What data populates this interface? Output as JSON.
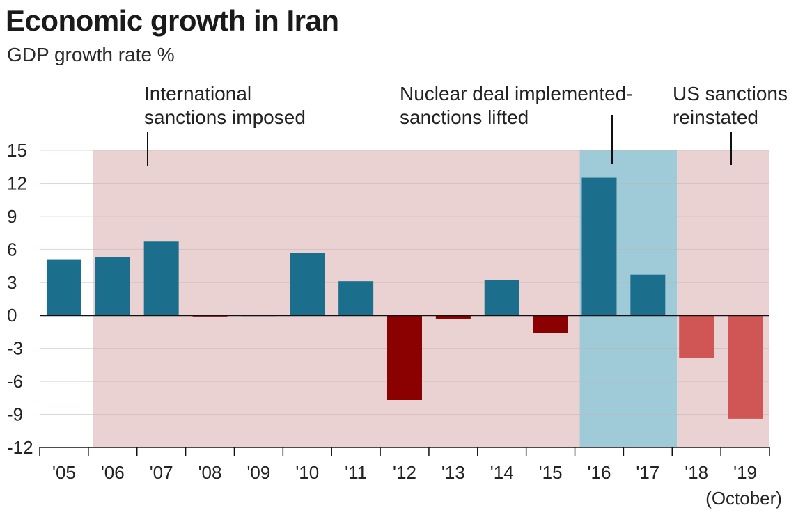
{
  "title": "Economic growth in Iran",
  "subtitle": "GDP growth rate %",
  "annotations": [
    {
      "line1": "International",
      "line2": "sanctions imposed"
    },
    {
      "line1": "Nuclear deal implemented-",
      "line2": "sanctions lifted"
    },
    {
      "line1": "US sanctions",
      "line2": "reinstated"
    }
  ],
  "x_footnote": "(October)",
  "colors": {
    "positive": "#1b6f8c",
    "negative": "#8b0000",
    "forecast_negative": "#d05555",
    "sanctions_band": "#ead2d2",
    "lifted_band": "#9fcbd8",
    "zero_line": "#111111",
    "grid": "#c9b3b3"
  },
  "chart_data": {
    "type": "bar",
    "title": "Economic growth in Iran",
    "subtitle": "GDP growth rate %",
    "categories": [
      "'05",
      "'06",
      "'07",
      "'08",
      "'09",
      "'10",
      "'11",
      "'12",
      "'13",
      "'14",
      "'15",
      "'16",
      "'17",
      "'18",
      "'19"
    ],
    "values": [
      5.1,
      5.3,
      6.7,
      -0.1,
      0.0,
      5.7,
      3.1,
      -7.7,
      -0.3,
      3.2,
      -1.6,
      12.5,
      3.7,
      -3.9,
      -9.4
    ],
    "forecast_categories": [
      "'18",
      "'19"
    ],
    "ylim": [
      -12,
      15
    ],
    "yticks": [
      15,
      12,
      9,
      6,
      3,
      0,
      -3,
      -6,
      -9,
      -12
    ],
    "grid": true,
    "shaded_periods": [
      {
        "label": "International sanctions imposed",
        "from": "'06",
        "to": "'15",
        "kind": "sanctions"
      },
      {
        "label": "Nuclear deal implemented-sanctions lifted",
        "from": "'16",
        "to": "'17",
        "kind": "lifted"
      },
      {
        "label": "US sanctions reinstated",
        "from": "'18",
        "to": "'19",
        "kind": "sanctions"
      }
    ]
  }
}
